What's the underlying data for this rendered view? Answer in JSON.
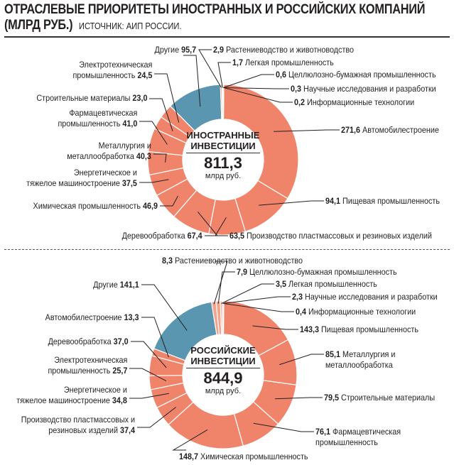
{
  "header": {
    "title_line1": "ОТРАСЛЕВЫЕ ПРИОРИТЕТЫ ИНОСТРАННЫХ  И РОССИЙСКИХ КОМПАНИЙ",
    "title_line2": "(МЛРД РУБ.)",
    "source": "ИСТОЧНИК: АИП РОССИИ."
  },
  "colors": {
    "main": "#f0846a",
    "other": "#5a96b0",
    "small": "#f3a48f"
  },
  "chart_data": [
    {
      "type": "pie",
      "title": "ИНОСТРАННЫЕ ИНВЕСТИЦИИ",
      "title_lines": [
        "ИНОСТРАННЫЕ",
        "ИНВЕСТИЦИИ"
      ],
      "total": "811,3",
      "unit": "млрд руб.",
      "slices": [
        {
          "label": "Автомобилестроение",
          "value": 271.6
        },
        {
          "label": "Пищевая промышленность",
          "value": 94.1
        },
        {
          "label": "Производство пластмассовых и резиновых изделий",
          "value": 63.5
        },
        {
          "label": "Деревообработка",
          "value": 67.4
        },
        {
          "label": "Химическая промышленность",
          "value": 46.9
        },
        {
          "label": "Энергетическое и тяжелое машиностроение",
          "value": 37.5
        },
        {
          "label": "Металлургия и металлообработка",
          "value": 40.3
        },
        {
          "label": "Фармацевтическая промышленность",
          "value": 41.0
        },
        {
          "label": "Строительные материалы",
          "value": 23.0
        },
        {
          "label": "Электротехническая промышленность",
          "value": 24.5
        },
        {
          "label": "Другие",
          "value": 95.7
        },
        {
          "label": "Растениеводство и животноводство",
          "value": 2.9
        },
        {
          "label": "Легкая промышленность",
          "value": 1.7
        },
        {
          "label": "Целлюлозно-бумажная промышленность",
          "value": 0.6
        },
        {
          "label": "Научные исследования и разработки",
          "value": 0.3
        },
        {
          "label": "Информационные технологии",
          "value": 0.2
        }
      ]
    },
    {
      "type": "pie",
      "title": "РОССИЙСКИЕ ИНВЕСТИЦИИ",
      "title_lines": [
        "РОССИЙСКИЕ",
        "ИНВЕСТИЦИИ"
      ],
      "total": "844,9",
      "unit": "млрд руб.",
      "slices": [
        {
          "label": "Пищевая промышленность",
          "value": 143.3
        },
        {
          "label": "Металлургия и металлообработка",
          "value": 85.1
        },
        {
          "label": "Строительные материалы",
          "value": 79.5
        },
        {
          "label": "Фармацевтическая промышленность",
          "value": 76.1
        },
        {
          "label": "Химическая промышленность",
          "value": 148.7
        },
        {
          "label": "Производство пластмассовых и резиновых изделий",
          "value": 37.4
        },
        {
          "label": "Энергетическое и тяжелое машиностроение",
          "value": 34.8
        },
        {
          "label": "Электротехническая промышленность",
          "value": 25.7
        },
        {
          "label": "Деревообработка",
          "value": 37.0
        },
        {
          "label": "Автомобилестроение",
          "value": 13.3
        },
        {
          "label": "Другие",
          "value": 141.1
        },
        {
          "label": "Растениеводство и животноводство",
          "value": 8.3
        },
        {
          "label": "Целлюлозно-бумажная промышленность",
          "value": 7.9
        },
        {
          "label": "Легкая промышленность",
          "value": 3.5
        },
        {
          "label": "Научные исследования и разработки",
          "value": 2.3
        },
        {
          "label": "Информационные технологии",
          "value": 0.4
        }
      ]
    }
  ]
}
